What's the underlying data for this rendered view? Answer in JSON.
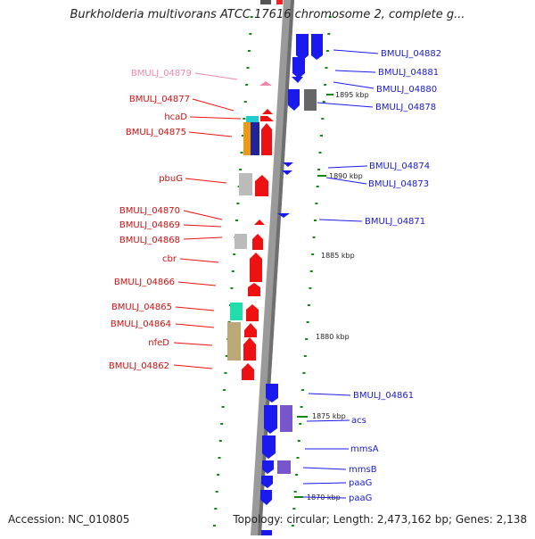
{
  "title": "Burkholderia multivorans ATCC 17616 chromosome 2, complete g...",
  "footer": {
    "accession": "Accession: NC_010805",
    "summary": "Topology: circular; Length: 2,473,162 bp; Genes: 2,138"
  },
  "colors": {
    "forward": "#ee1111",
    "reverse": "#1a1aee",
    "highlight_label": "#ee88aa",
    "backbone": "#999999",
    "ticks": "#118811"
  },
  "scale_labels": [
    "1895 kbp",
    "1890 kbp",
    "1885 kbp",
    "1880 kbp",
    "1875 kbp",
    "1870 kbp"
  ],
  "genes_left": [
    {
      "name": "BMULJ_04879",
      "highlight": true
    },
    {
      "name": "BMULJ_04877"
    },
    {
      "name": "hcaD"
    },
    {
      "name": "BMULJ_04875"
    },
    {
      "name": "pbuG"
    },
    {
      "name": "BMULJ_04870"
    },
    {
      "name": "BMULJ_04869"
    },
    {
      "name": "BMULJ_04868"
    },
    {
      "name": "cbr"
    },
    {
      "name": "BMULJ_04866"
    },
    {
      "name": "BMULJ_04865"
    },
    {
      "name": "BMULJ_04864"
    },
    {
      "name": "nfeD"
    },
    {
      "name": "BMULJ_04862"
    }
  ],
  "genes_right": [
    {
      "name": "BMULJ_04882"
    },
    {
      "name": "BMULJ_04881"
    },
    {
      "name": "BMULJ_04880"
    },
    {
      "name": "BMULJ_04878"
    },
    {
      "name": "BMULJ_04874"
    },
    {
      "name": "BMULJ_04873"
    },
    {
      "name": "BMULJ_04871"
    },
    {
      "name": "BMULJ_04861"
    },
    {
      "name": "acs"
    },
    {
      "name": "mmsA"
    },
    {
      "name": "mmsB"
    },
    {
      "name": "paaG"
    },
    {
      "name": "paaG"
    }
  ]
}
